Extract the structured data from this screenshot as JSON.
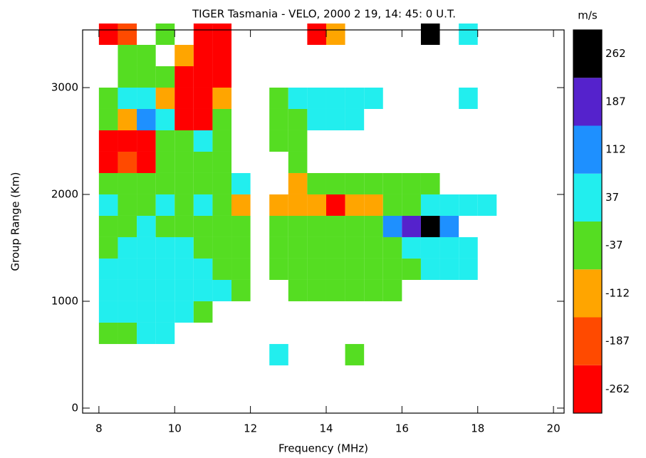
{
  "chart_data": {
    "type": "heatmap",
    "title": "TIGER Tasmania - VELO, 2000 2 19, 14: 45: 0 U.T.",
    "x_label": "Frequency (MHz)",
    "y_label": "Group Range (Km)",
    "xlim": [
      7.57,
      20.28
    ],
    "ylim": [
      -47,
      3540
    ],
    "xticks": [
      8,
      10,
      12,
      14,
      16,
      18,
      20
    ],
    "yticks": [
      0,
      1000,
      2000,
      3000
    ],
    "colorbar": {
      "title": "m/s",
      "levels": [
        -262,
        -187,
        -112,
        -37,
        37,
        112,
        187,
        262
      ],
      "colors": [
        "#ff0000",
        "#ff4a00",
        "#ffa500",
        "#55dd22",
        "#22eeee",
        "#1e90ff",
        "#5522cc",
        "#000000"
      ]
    },
    "x": [
      12.5,
      14.5,
      8,
      8.5,
      9,
      9.5,
      8,
      8.5,
      9,
      9.5,
      10,
      10.5,
      8,
      8.5,
      9,
      9.5,
      10,
      10.5,
      11,
      11.5,
      13,
      13.5,
      14,
      14.5,
      15,
      15.5,
      8,
      8.5,
      9,
      9.5,
      10,
      10.5,
      11,
      11.5,
      12.5,
      13,
      13.5,
      14,
      14.5,
      15,
      15.5,
      16,
      16.5,
      17,
      17.5,
      8,
      8.5,
      9,
      9.5,
      10,
      10.5,
      11,
      11.5,
      12.5,
      13,
      13.5,
      14,
      14.5,
      15,
      15.5,
      16,
      16.5,
      17,
      17.5,
      8,
      8.5,
      9,
      9.5,
      10,
      10.5,
      11,
      11.5,
      12.5,
      13,
      13.5,
      14,
      14.5,
      15,
      15.5,
      16,
      16.5,
      17,
      8,
      8.5,
      9,
      9.5,
      10,
      10.5,
      11,
      11.5,
      12.5,
      13,
      13.5,
      14,
      14.5,
      15,
      15.5,
      16,
      16.5,
      17,
      17.5,
      18,
      8,
      8.5,
      9,
      9.5,
      10,
      10.5,
      11,
      11.5,
      13,
      13.5,
      14,
      14.5,
      15,
      15.5,
      16,
      16.5,
      8,
      8.5,
      9,
      9.5,
      10,
      10.5,
      11,
      13,
      8,
      8.5,
      9,
      9.5,
      10,
      10.5,
      11,
      12.5,
      13,
      8,
      8.5,
      9,
      9.5,
      10,
      10.5,
      11,
      12.5,
      13,
      13.5,
      14,
      14.5,
      8,
      8.5,
      9,
      9.5,
      10,
      10.5,
      11,
      12.5,
      13,
      13.5,
      14,
      14.5,
      15,
      17.5,
      8.5,
      9,
      9.5,
      10,
      10.5,
      11,
      8.5,
      9,
      10,
      10.5,
      11,
      8,
      8.5,
      9.5,
      10.5,
      11,
      13.5,
      14,
      16.5,
      17.5
    ],
    "y": [
      400,
      400,
      600,
      600,
      600,
      600,
      800,
      800,
      800,
      800,
      800,
      800,
      1000,
      1000,
      1000,
      1000,
      1000,
      1000,
      1000,
      1000,
      1000,
      1000,
      1000,
      1000,
      1000,
      1000,
      1200,
      1200,
      1200,
      1200,
      1200,
      1200,
      1200,
      1200,
      1200,
      1200,
      1200,
      1200,
      1200,
      1200,
      1200,
      1200,
      1200,
      1200,
      1200,
      1400,
      1400,
      1400,
      1400,
      1400,
      1400,
      1400,
      1400,
      1400,
      1400,
      1400,
      1400,
      1400,
      1400,
      1400,
      1400,
      1400,
      1400,
      1400,
      1600,
      1600,
      1600,
      1600,
      1600,
      1600,
      1600,
      1600,
      1600,
      1600,
      1600,
      1600,
      1600,
      1600,
      1600,
      1600,
      1600,
      1600,
      1800,
      1800,
      1800,
      1800,
      1800,
      1800,
      1800,
      1800,
      1800,
      1800,
      1800,
      1800,
      1800,
      1800,
      1800,
      1800,
      1800,
      1800,
      1800,
      1800,
      2000,
      2000,
      2000,
      2000,
      2000,
      2000,
      2000,
      2000,
      2000,
      2000,
      2000,
      2000,
      2000,
      2000,
      2000,
      2000,
      2200,
      2200,
      2200,
      2200,
      2200,
      2200,
      2200,
      2200,
      2400,
      2400,
      2400,
      2400,
      2400,
      2400,
      2400,
      2400,
      2400,
      2600,
      2600,
      2600,
      2600,
      2600,
      2600,
      2600,
      2600,
      2600,
      2600,
      2600,
      2600,
      2800,
      2800,
      2800,
      2800,
      2800,
      2800,
      2800,
      2800,
      2800,
      2800,
      2800,
      2800,
      2800,
      2800,
      3000,
      3000,
      3000,
      3000,
      3000,
      3000,
      3200,
      3200,
      3200,
      3200,
      3200,
      3400,
      3400,
      3400,
      3400,
      3400,
      3400,
      3400,
      3400,
      3400
    ],
    "values": [
      37,
      -37,
      -37,
      -37,
      37,
      37,
      37,
      37,
      37,
      37,
      37,
      -37,
      37,
      37,
      37,
      37,
      37,
      37,
      37,
      -37,
      -37,
      -37,
      -37,
      -37,
      -37,
      -37,
      37,
      37,
      37,
      37,
      37,
      37,
      -37,
      -37,
      -37,
      -37,
      -37,
      -37,
      -37,
      -37,
      -37,
      -37,
      37,
      37,
      37,
      -37,
      37,
      37,
      37,
      37,
      -37,
      -37,
      -37,
      -37,
      -37,
      -37,
      -37,
      -37,
      -37,
      -37,
      37,
      37,
      37,
      37,
      -37,
      -37,
      37,
      -37,
      -37,
      -37,
      -37,
      -37,
      -37,
      -37,
      -37,
      -37,
      -37,
      -37,
      112,
      187,
      262,
      112,
      37,
      -37,
      -37,
      37,
      -37,
      37,
      -37,
      -112,
      -112,
      -112,
      -112,
      -262,
      -112,
      -112,
      -37,
      -37,
      37,
      37,
      37,
      37,
      -37,
      -37,
      -37,
      -37,
      -37,
      -37,
      -37,
      37,
      -112,
      -37,
      -37,
      -37,
      -37,
      -37,
      -37,
      -37,
      -262,
      -187,
      -262,
      -37,
      -37,
      -37,
      -37,
      -37,
      -262,
      -262,
      -262,
      -37,
      -37,
      37,
      -37,
      -37,
      -37,
      -37,
      -112,
      112,
      37,
      -262,
      -262,
      -37,
      -37,
      -37,
      37,
      37,
      37,
      -37,
      37,
      37,
      -112,
      -262,
      -262,
      -112,
      -37,
      37,
      37,
      37,
      37,
      37,
      37,
      -37,
      -37,
      -37,
      -262,
      -262,
      -262,
      -37,
      -37,
      -112,
      -262,
      -262,
      -262,
      -187,
      -37,
      -262,
      -262,
      -262,
      -112,
      262,
      37
    ]
  }
}
